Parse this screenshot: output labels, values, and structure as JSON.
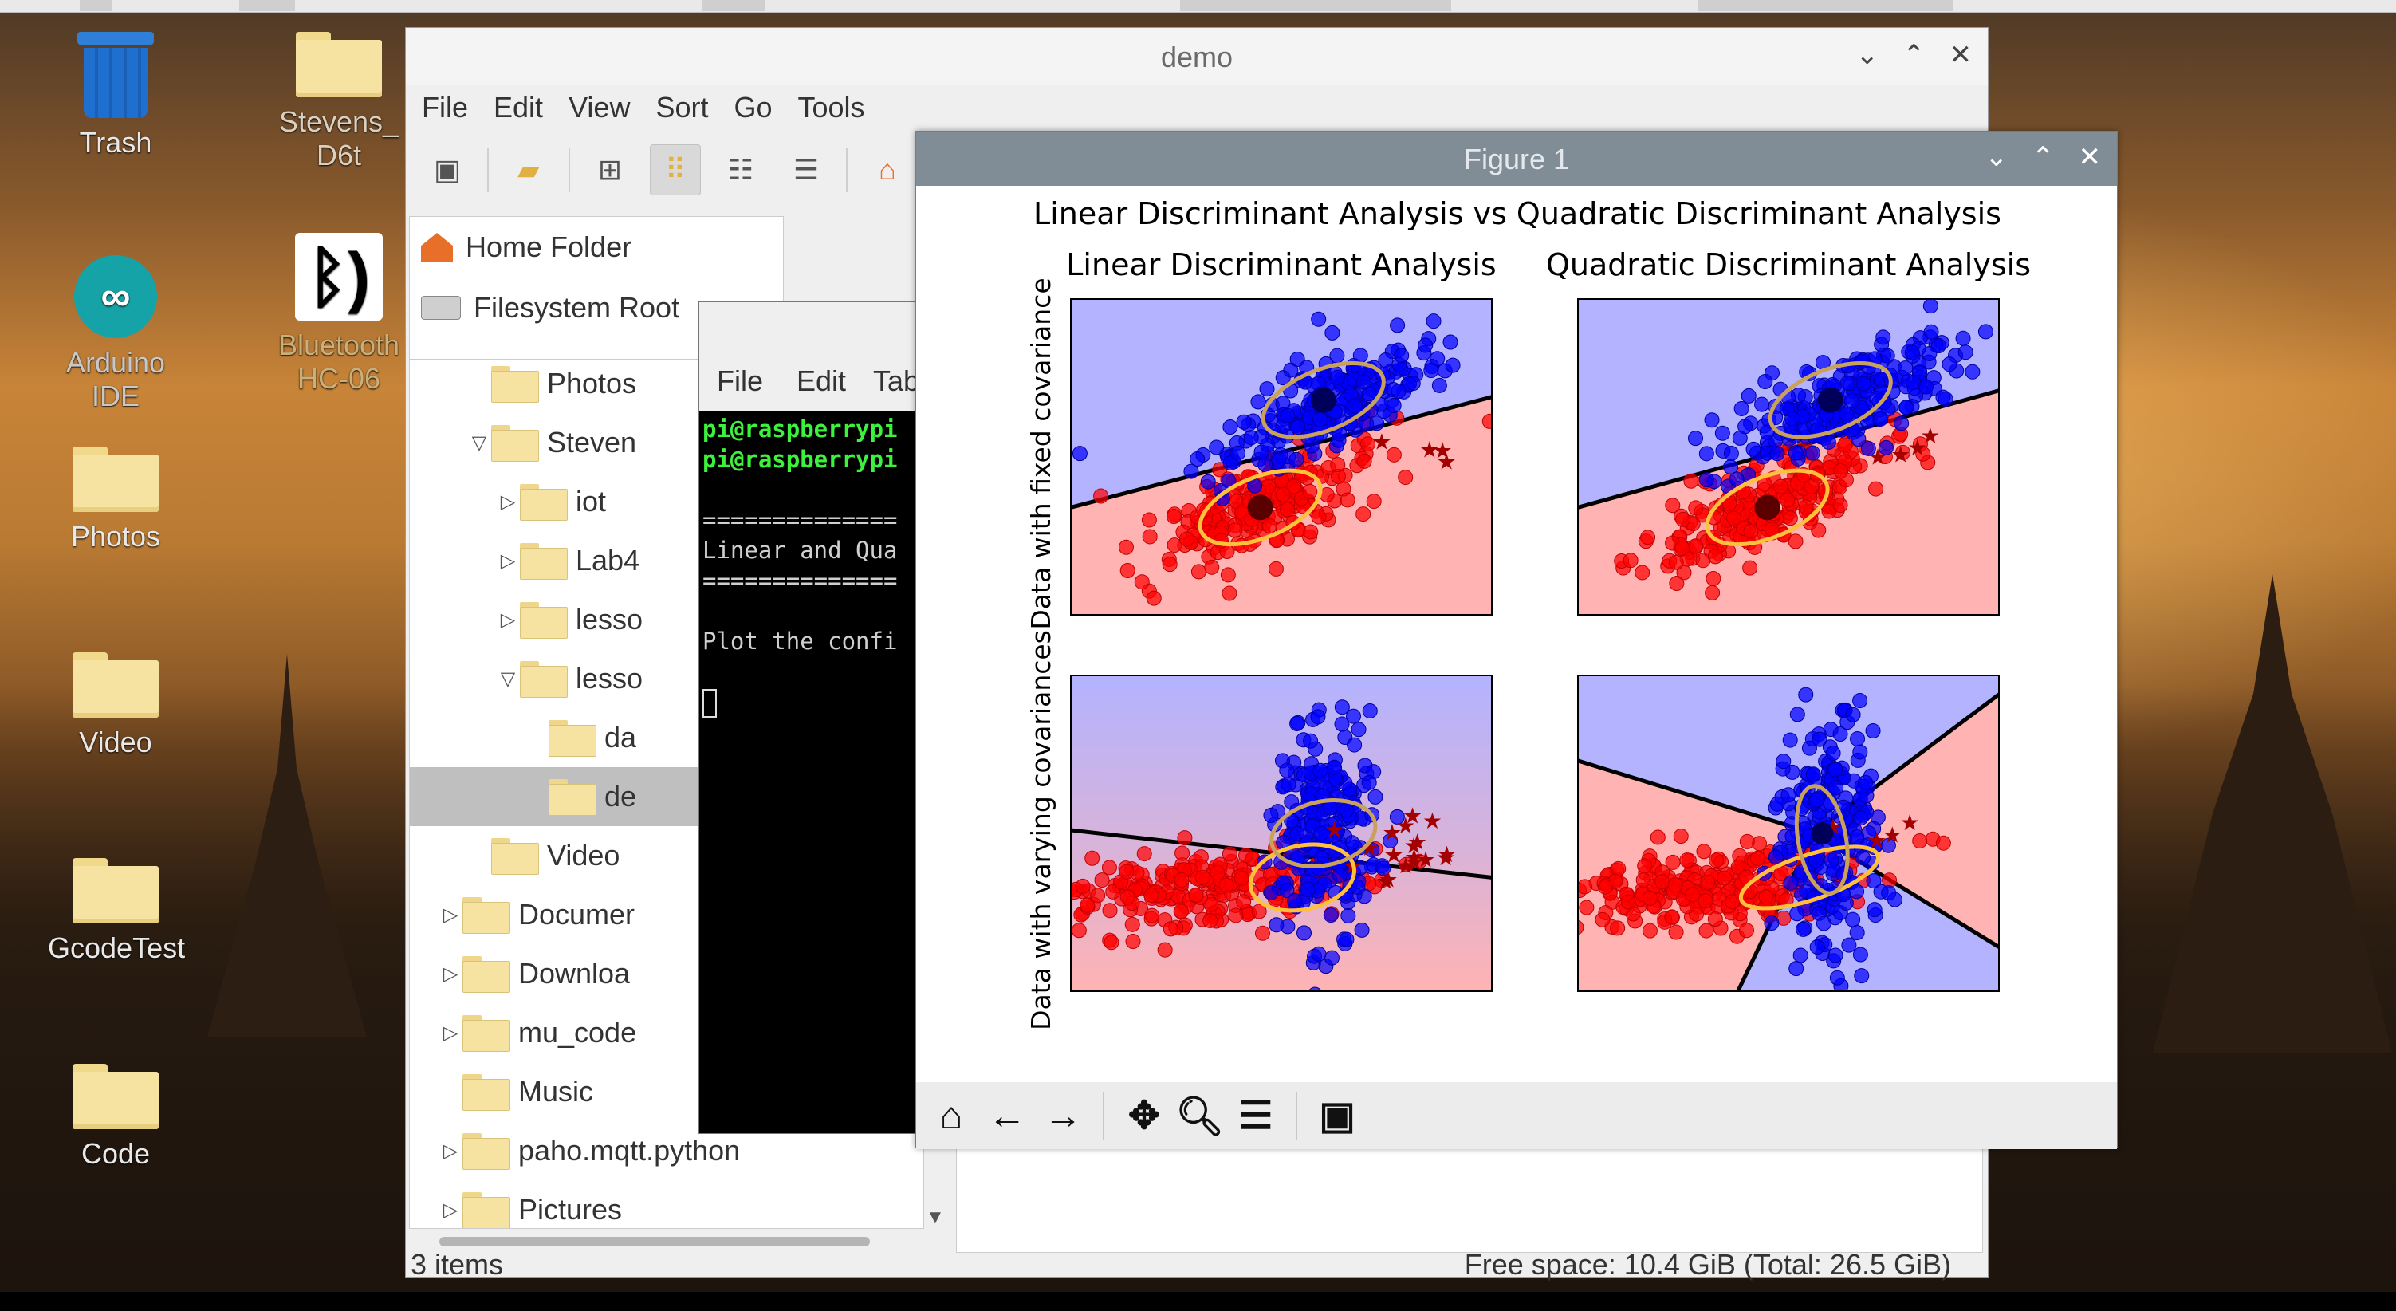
{
  "desktop": {
    "icons": [
      {
        "label": "Trash",
        "icon": "trash-icon"
      },
      {
        "label": "Stevens_D6t",
        "icon": "folder-icon"
      },
      {
        "label": "Arduino IDE",
        "icon": "arduino-icon"
      },
      {
        "label": "Bluetooth HC-06",
        "icon": "bluetooth-icon"
      },
      {
        "label": "Photos",
        "icon": "folder-icon"
      },
      {
        "label": "Video",
        "icon": "folder-icon"
      },
      {
        "label": "GcodeTest",
        "icon": "folder-icon"
      },
      {
        "label": "Code",
        "icon": "folder-icon"
      }
    ]
  },
  "file_manager": {
    "title": "demo",
    "menu": [
      "File",
      "Edit",
      "View",
      "Sort",
      "Go",
      "Tools"
    ],
    "places": [
      "Home Folder",
      "Filesystem Root"
    ],
    "tree": [
      {
        "label": "Photos",
        "indent": 1
      },
      {
        "label": "Steven",
        "indent": 1,
        "expanded": true
      },
      {
        "label": "iot",
        "indent": 2
      },
      {
        "label": "Lab4",
        "indent": 2
      },
      {
        "label": "lesso",
        "indent": 2
      },
      {
        "label": "lesso",
        "indent": 2,
        "expanded": true
      },
      {
        "label": "da",
        "indent": 3
      },
      {
        "label": "de",
        "indent": 3,
        "selected": true
      },
      {
        "label": "Video",
        "indent": 1
      },
      {
        "label": "Documer",
        "indent": 0
      },
      {
        "label": "Downloa",
        "indent": 0
      },
      {
        "label": "mu_code",
        "indent": 0
      },
      {
        "label": "Music",
        "indent": 0
      },
      {
        "label": "paho.mqtt.python",
        "indent": 0
      },
      {
        "label": "Pictures",
        "indent": 0
      }
    ],
    "status_left": "3 items",
    "status_right": "Free space: 10.4 GiB (Total: 26.5 GiB)"
  },
  "terminal": {
    "menu": [
      "File",
      "Edit",
      "Tab"
    ],
    "prompt1": "pi@raspberrypi",
    "prompt2": "pi@raspberrypi",
    "line_sep1": "==============",
    "line_text": "Linear and Qua",
    "line_sep2": "==============",
    "line_plot": "Plot the confi"
  },
  "figure": {
    "title": "Figure 1",
    "chart_data": {
      "type": "scatter",
      "title": "Linear Discriminant Analysis vs Quadratic Discriminant Analysis",
      "column_titles": [
        "Linear Discriminant Analysis",
        "Quadratic Discriminant Analysis"
      ],
      "row_labels": [
        "Data with fixed covariance",
        "Data with varying covariances"
      ],
      "series_colors": {
        "class_0": "#ff0000",
        "class_1": "#0000ff",
        "region_0": "#ffb3b3",
        "region_1": "#b3b3ff",
        "ellipse": "#ffc13b"
      },
      "grid": false
    },
    "toolbar": [
      "home-icon",
      "back-icon",
      "forward-icon",
      "pan-icon",
      "zoom-icon",
      "configure-icon",
      "save-icon"
    ]
  }
}
